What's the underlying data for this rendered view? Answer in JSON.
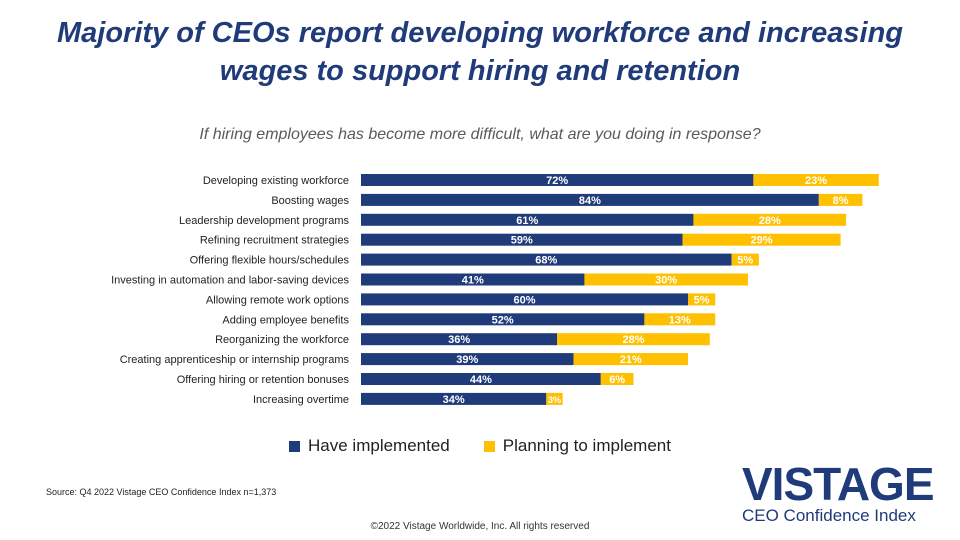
{
  "header": {
    "title_line1": "Majority of CEOs report developing workforce and increasing",
    "title_line2": "wages to support hiring and retention",
    "subtitle": "If hiring employees has become more difficult, what are you doing in response?"
  },
  "colors": {
    "implemented": "#1f3b7a",
    "planning": "#ffc000",
    "title": "#1f3b7a"
  },
  "chart_data": {
    "type": "bar",
    "orientation": "horizontal",
    "stacked": true,
    "categories": [
      "Developing existing workforce",
      "Boosting wages",
      "Leadership development programs",
      "Refining recruitment strategies",
      "Offering flexible hours/schedules",
      "Investing in automation and labor-saving devices",
      "Allowing remote work options",
      "Adding employee benefits",
      "Reorganizing the workforce",
      "Creating apprenticeship or internship programs",
      "Offering hiring or retention bonuses",
      "Increasing overtime"
    ],
    "series": [
      {
        "name": "Have implemented",
        "values": [
          72,
          84,
          61,
          59,
          68,
          41,
          60,
          52,
          36,
          39,
          44,
          34
        ]
      },
      {
        "name": "Planning to implement",
        "values": [
          23,
          8,
          28,
          29,
          5,
          30,
          5,
          13,
          28,
          21,
          6,
          3
        ]
      }
    ],
    "value_labels": [
      [
        "72%",
        "84%",
        "61%",
        "59%",
        "68%",
        "41%",
        "60%",
        "52%",
        "36%",
        "39%",
        "44%",
        "34%"
      ],
      [
        "23%",
        "8%",
        "28%",
        "29%",
        "5%",
        "30%",
        "5%",
        "13%",
        "28%",
        "21%",
        "6%",
        "3%"
      ]
    ],
    "xlim": [
      0,
      100
    ],
    "grid": false,
    "legend": "bottom"
  },
  "legend": {
    "implemented_label": "Have implemented",
    "planning_label": "Planning to implement"
  },
  "footer": {
    "source": "Source: Q4 2022 Vistage CEO Confidence Index n=1,373",
    "copyright": "©2022 Vistage Worldwide, Inc. All rights reserved"
  },
  "logo": {
    "main": "VISTAGE",
    "sub": "CEO Confidence Index"
  }
}
